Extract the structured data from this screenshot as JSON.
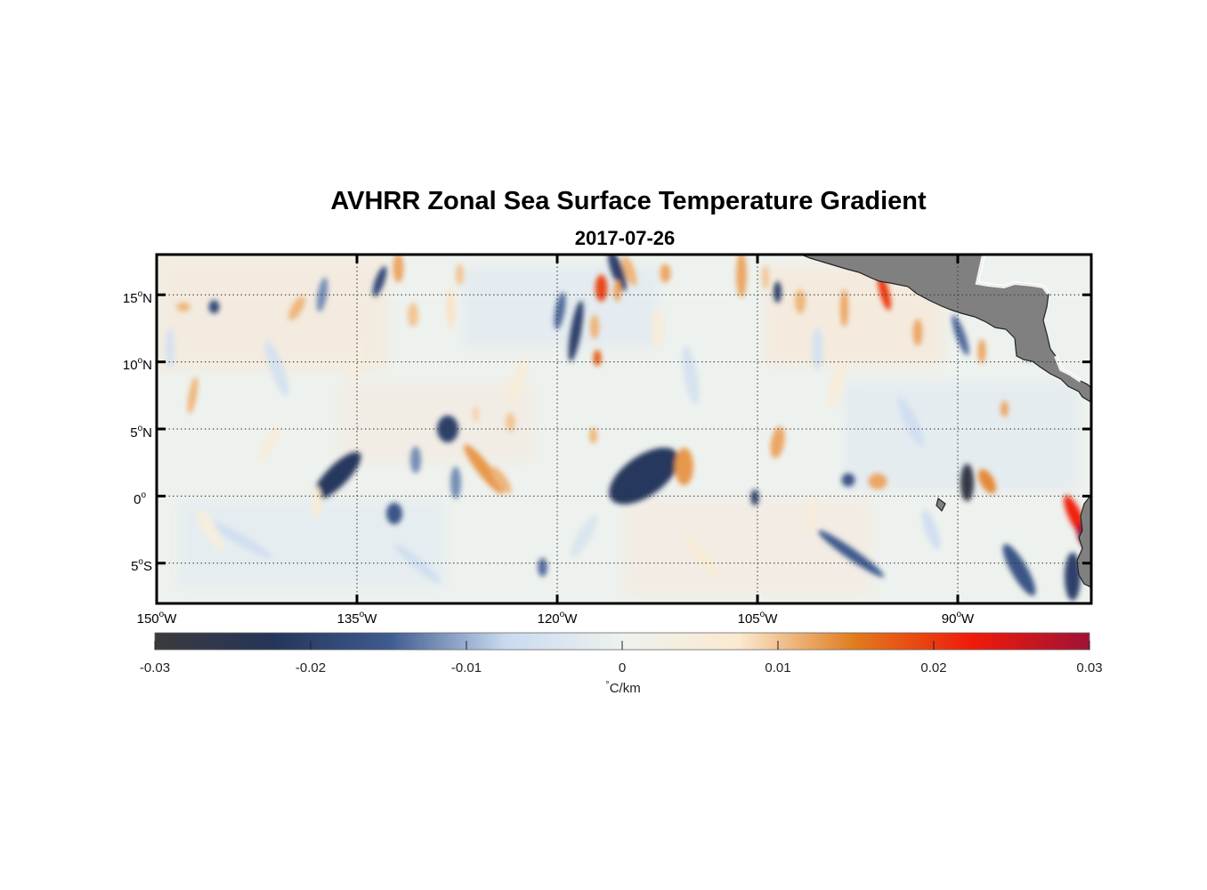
{
  "title": "AVHRR Zonal Sea Surface Temperature Gradient",
  "subtitle": "2017-07-26",
  "map": {
    "lon_range": [
      -150,
      -80
    ],
    "lat_range": [
      -8,
      18
    ],
    "grid": true,
    "land_color": "#808080",
    "lon_ticks": [
      {
        "value": -150,
        "deg": "150",
        "hemi": "W"
      },
      {
        "value": -135,
        "deg": "135",
        "hemi": "W"
      },
      {
        "value": -120,
        "deg": "120",
        "hemi": "W"
      },
      {
        "value": -105,
        "deg": "105",
        "hemi": "W"
      },
      {
        "value": -90,
        "deg": "90",
        "hemi": "W"
      }
    ],
    "lat_ticks": [
      {
        "value": 15,
        "deg": "15",
        "hemi": "N"
      },
      {
        "value": 10,
        "deg": "10",
        "hemi": "N"
      },
      {
        "value": 5,
        "deg": "5",
        "hemi": "N"
      },
      {
        "value": 0,
        "deg": "0",
        "hemi": ""
      },
      {
        "value": -5,
        "deg": "5",
        "hemi": "S"
      }
    ]
  },
  "colorbar": {
    "min": -0.03,
    "max": 0.03,
    "ticks": [
      "-0.03",
      "-0.02",
      "-0.01",
      "0",
      "0.01",
      "0.02",
      "0.03"
    ],
    "tick_values": [
      -0.03,
      -0.02,
      -0.01,
      0,
      0.01,
      0.02,
      0.03
    ],
    "label_deg": "°",
    "label_unit": "C/km",
    "colors": [
      "#3a3a3c",
      "#25355a",
      "#3e5a8e",
      "#c9daf0",
      "#eef2ee",
      "#fbe9d0",
      "#e07a1c",
      "#f01a0a",
      "#a01236"
    ]
  },
  "features": [
    {
      "lon": -136.5,
      "lat": 1.5,
      "rx": 0.8,
      "ry": 2.4,
      "rot": 45,
      "v": -0.022
    },
    {
      "lon": -128.2,
      "lat": 5.0,
      "rx": 0.8,
      "ry": 1.0,
      "rot": 0,
      "v": -0.02
    },
    {
      "lon": -125.5,
      "lat": 2.0,
      "rx": 0.5,
      "ry": 2.3,
      "rot": -38,
      "v": 0.013
    },
    {
      "lon": -124.2,
      "lat": 1.2,
      "rx": 0.4,
      "ry": 1.2,
      "rot": -35,
      "v": 0.011
    },
    {
      "lon": -113.5,
      "lat": 1.5,
      "rx": 1.5,
      "ry": 3.0,
      "rot": 55,
      "v": -0.022
    },
    {
      "lon": -110.5,
      "lat": 2.2,
      "rx": 0.7,
      "ry": 1.4,
      "rot": 0,
      "v": 0.013
    },
    {
      "lon": -103.5,
      "lat": 4.0,
      "rx": 0.5,
      "ry": 1.2,
      "rot": 10,
      "v": 0.012
    },
    {
      "lon": -89.3,
      "lat": 1.0,
      "rx": 0.5,
      "ry": 1.4,
      "rot": 0,
      "v": -0.028
    },
    {
      "lon": -87.8,
      "lat": 1.1,
      "rx": 0.5,
      "ry": 1.0,
      "rot": -30,
      "v": 0.014
    },
    {
      "lon": -81.2,
      "lat": -1.5,
      "rx": 0.5,
      "ry": 1.7,
      "rot": -25,
      "v": 0.022
    },
    {
      "lon": -80.6,
      "lat": -3.0,
      "rx": 0.4,
      "ry": 1.0,
      "rot": -20,
      "v": 0.03
    },
    {
      "lon": -81.4,
      "lat": -6.0,
      "rx": 0.6,
      "ry": 1.8,
      "rot": 0,
      "v": -0.02
    },
    {
      "lon": -98.0,
      "lat": -4.3,
      "rx": 0.4,
      "ry": 3.0,
      "rot": -55,
      "v": -0.015
    },
    {
      "lon": -85.4,
      "lat": -5.5,
      "rx": 0.6,
      "ry": 2.2,
      "rot": -30,
      "v": -0.016
    },
    {
      "lon": -118.6,
      "lat": 12.3,
      "rx": 0.4,
      "ry": 2.3,
      "rot": 10,
      "v": -0.02
    },
    {
      "lon": -119.8,
      "lat": 13.8,
      "rx": 0.35,
      "ry": 1.4,
      "rot": 10,
      "v": -0.014
    },
    {
      "lon": -115.5,
      "lat": 16.8,
      "rx": 0.45,
      "ry": 1.6,
      "rot": -20,
      "v": -0.02
    },
    {
      "lon": -114.6,
      "lat": 16.8,
      "rx": 0.4,
      "ry": 1.2,
      "rot": -20,
      "v": 0.011
    },
    {
      "lon": -111.9,
      "lat": 16.6,
      "rx": 0.4,
      "ry": 0.7,
      "rot": 0,
      "v": 0.012
    },
    {
      "lon": -116.7,
      "lat": 15.5,
      "rx": 0.45,
      "ry": 1.0,
      "rot": 0,
      "v": 0.019
    },
    {
      "lon": -117.2,
      "lat": 12.6,
      "rx": 0.35,
      "ry": 0.9,
      "rot": 0,
      "v": 0.011
    },
    {
      "lon": -117.0,
      "lat": 10.3,
      "rx": 0.3,
      "ry": 0.6,
      "rot": 0,
      "v": 0.017
    },
    {
      "lon": -115.5,
      "lat": 15.3,
      "rx": 0.3,
      "ry": 0.8,
      "rot": 0,
      "v": 0.012
    },
    {
      "lon": -131.9,
      "lat": 17.0,
      "rx": 0.4,
      "ry": 1.1,
      "rot": 0,
      "v": 0.012
    },
    {
      "lon": -130.8,
      "lat": 13.5,
      "rx": 0.4,
      "ry": 0.9,
      "rot": 0,
      "v": 0.01
    },
    {
      "lon": -127.3,
      "lat": 16.5,
      "rx": 0.3,
      "ry": 0.8,
      "rot": 0,
      "v": 0.01
    },
    {
      "lon": -139.5,
      "lat": 14.0,
      "rx": 0.4,
      "ry": 1.0,
      "rot": 30,
      "v": 0.011
    },
    {
      "lon": -147.3,
      "lat": 7.5,
      "rx": 0.3,
      "ry": 1.4,
      "rot": 10,
      "v": 0.011
    },
    {
      "lon": -148.0,
      "lat": 14.1,
      "rx": 0.5,
      "ry": 0.35,
      "rot": 0,
      "v": 0.011
    },
    {
      "lon": -145.7,
      "lat": 14.1,
      "rx": 0.4,
      "ry": 0.5,
      "rot": 0,
      "v": -0.018
    },
    {
      "lon": -133.3,
      "lat": 16.0,
      "rx": 0.35,
      "ry": 1.2,
      "rot": 20,
      "v": -0.018
    },
    {
      "lon": -137.6,
      "lat": 15.0,
      "rx": 0.35,
      "ry": 1.3,
      "rot": 10,
      "v": -0.012
    },
    {
      "lon": -128.0,
      "lat": 14.0,
      "rx": 0.3,
      "ry": 1.5,
      "rot": 0,
      "v": 0.008
    },
    {
      "lon": -106.2,
      "lat": 16.5,
      "rx": 0.4,
      "ry": 1.7,
      "rot": 0,
      "v": 0.012
    },
    {
      "lon": -103.5,
      "lat": 15.2,
      "rx": 0.3,
      "ry": 0.8,
      "rot": 0,
      "v": -0.02
    },
    {
      "lon": -101.8,
      "lat": 14.5,
      "rx": 0.4,
      "ry": 0.9,
      "rot": 0,
      "v": 0.011
    },
    {
      "lon": -98.5,
      "lat": 14.0,
      "rx": 0.3,
      "ry": 1.4,
      "rot": 0,
      "v": 0.012
    },
    {
      "lon": -95.5,
      "lat": 15.2,
      "rx": 0.35,
      "ry": 1.4,
      "rot": -15,
      "v": 0.02
    },
    {
      "lon": -93.0,
      "lat": 12.2,
      "rx": 0.35,
      "ry": 1.0,
      "rot": 0,
      "v": 0.012
    },
    {
      "lon": -89.8,
      "lat": 12.0,
      "rx": 0.35,
      "ry": 1.6,
      "rot": -20,
      "v": -0.014
    },
    {
      "lon": -88.2,
      "lat": 10.8,
      "rx": 0.3,
      "ry": 0.9,
      "rot": 0,
      "v": 0.012
    },
    {
      "lon": -84.7,
      "lat": 11.5,
      "rx": 0.3,
      "ry": 1.5,
      "rot": 0,
      "v": -0.012
    },
    {
      "lon": -86.5,
      "lat": 6.5,
      "rx": 0.3,
      "ry": 0.6,
      "rot": 0,
      "v": 0.012
    },
    {
      "lon": -96.0,
      "lat": 1.1,
      "rx": 0.7,
      "ry": 0.6,
      "rot": 0,
      "v": 0.012
    },
    {
      "lon": -98.2,
      "lat": 1.2,
      "rx": 0.5,
      "ry": 0.5,
      "rot": 0,
      "v": -0.016
    },
    {
      "lon": -132.2,
      "lat": -1.3,
      "rx": 0.6,
      "ry": 0.8,
      "rot": 0,
      "v": -0.016
    },
    {
      "lon": -127.6,
      "lat": 1.0,
      "rx": 0.4,
      "ry": 1.2,
      "rot": 0,
      "v": -0.012
    },
    {
      "lon": -130.6,
      "lat": 2.7,
      "rx": 0.4,
      "ry": 1.0,
      "rot": 0,
      "v": -0.012
    },
    {
      "lon": -121.1,
      "lat": -5.3,
      "rx": 0.35,
      "ry": 0.7,
      "rot": 0,
      "v": -0.014
    },
    {
      "lon": -105.2,
      "lat": -0.1,
      "rx": 0.3,
      "ry": 0.6,
      "rot": 0,
      "v": -0.02
    },
    {
      "lon": -117.3,
      "lat": 4.5,
      "rx": 0.3,
      "ry": 0.6,
      "rot": 0,
      "v": 0.011
    },
    {
      "lon": -123.5,
      "lat": 5.5,
      "rx": 0.35,
      "ry": 0.7,
      "rot": 0,
      "v": 0.01
    },
    {
      "lon": -126.1,
      "lat": 6.1,
      "rx": 0.25,
      "ry": 0.6,
      "rot": 0,
      "v": 0.009
    },
    {
      "lon": -104.4,
      "lat": 16.3,
      "rx": 0.25,
      "ry": 0.9,
      "rot": 0,
      "v": 0.01
    },
    {
      "lon": -143.8,
      "lat": -3.2,
      "rx": 0.4,
      "ry": 2.8,
      "rot": -60,
      "v": -0.006
    },
    {
      "lon": -130.5,
      "lat": -5.0,
      "rx": 0.4,
      "ry": 2.2,
      "rot": -50,
      "v": -0.006
    },
    {
      "lon": -109.2,
      "lat": -4.5,
      "rx": 0.4,
      "ry": 2.0,
      "rot": -40,
      "v": 0.006
    },
    {
      "lon": -141.0,
      "lat": 9.5,
      "rx": 0.5,
      "ry": 2.2,
      "rot": -20,
      "v": -0.005
    },
    {
      "lon": -123.0,
      "lat": 8.5,
      "rx": 0.5,
      "ry": 2.0,
      "rot": 20,
      "v": 0.005
    },
    {
      "lon": -110.0,
      "lat": 9.0,
      "rx": 0.5,
      "ry": 2.2,
      "rot": -10,
      "v": -0.005
    },
    {
      "lon": -99.0,
      "lat": 8.5,
      "rx": 0.5,
      "ry": 2.0,
      "rot": 15,
      "v": 0.005
    },
    {
      "lon": -93.5,
      "lat": 5.5,
      "rx": 0.5,
      "ry": 2.0,
      "rot": -25,
      "v": -0.006
    },
    {
      "lon": -135.0,
      "lat": 10.0,
      "rx": 0.4,
      "ry": 1.8,
      "rot": 10,
      "v": 0.004
    },
    {
      "lon": -146.0,
      "lat": -2.5,
      "rx": 0.5,
      "ry": 1.8,
      "rot": -30,
      "v": 0.004
    },
    {
      "lon": -118.0,
      "lat": -3.0,
      "rx": 0.5,
      "ry": 1.8,
      "rot": 30,
      "v": -0.004
    },
    {
      "lon": -112.5,
      "lat": 12.5,
      "rx": 0.4,
      "ry": 1.6,
      "rot": 0,
      "v": 0.005
    },
    {
      "lon": -100.5,
      "lat": 11.0,
      "rx": 0.4,
      "ry": 1.6,
      "rot": 0,
      "v": -0.005
    },
    {
      "lon": -141.5,
      "lat": 4.0,
      "rx": 0.4,
      "ry": 1.6,
      "rot": 30,
      "v": 0.005
    },
    {
      "lon": -149.0,
      "lat": 11.0,
      "rx": 0.35,
      "ry": 1.5,
      "rot": 0,
      "v": -0.005
    },
    {
      "lon": -138.0,
      "lat": -0.5,
      "rx": 0.35,
      "ry": 1.2,
      "rot": 0,
      "v": 0.006
    },
    {
      "lon": -101.0,
      "lat": -1.5,
      "rx": 0.45,
      "ry": 1.4,
      "rot": 0,
      "v": 0.005
    },
    {
      "lon": -92.0,
      "lat": -2.5,
      "rx": 0.45,
      "ry": 1.6,
      "rot": -20,
      "v": -0.006
    }
  ]
}
